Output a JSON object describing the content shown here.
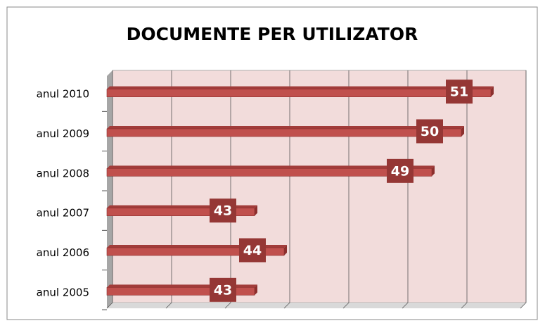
{
  "chart_data": {
    "type": "bar",
    "orientation": "horizontal",
    "title": "DOCUMENTE PER UTILIZATOR",
    "categories": [
      "anul 2010",
      "anul 2009",
      "anul 2008",
      "anul 2007",
      "anul 2006",
      "anul 2005"
    ],
    "values": [
      51,
      50,
      49,
      43,
      44,
      43
    ],
    "color": "#c0504d",
    "label_color": "#953735",
    "xlim": [
      38,
      52
    ],
    "xticks": [
      38,
      40,
      42,
      44,
      46,
      48,
      50,
      52
    ],
    "grid": true
  }
}
